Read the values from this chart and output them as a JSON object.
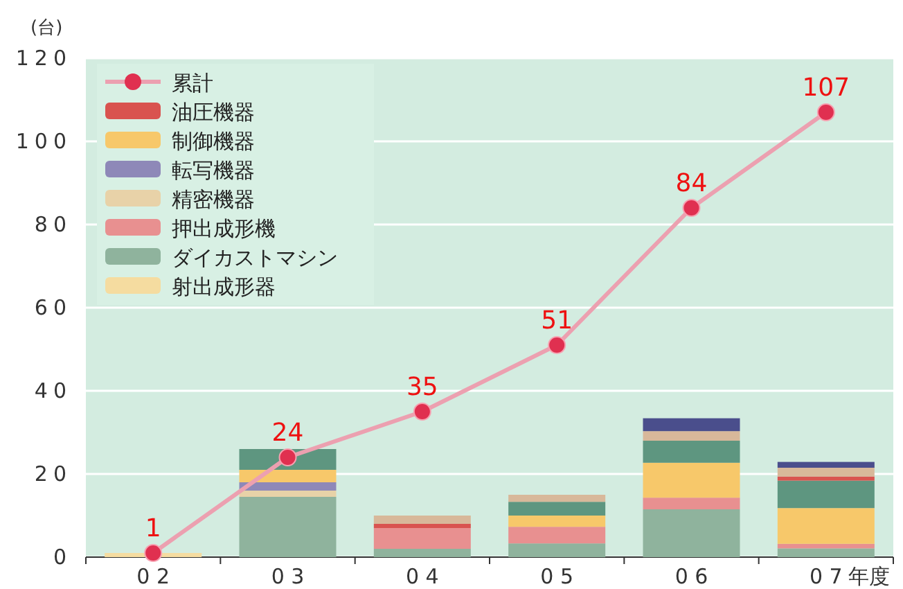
{
  "chart_data": {
    "type": "bar",
    "stacked": true,
    "ylabel": "(台)",
    "xlabel": "年度",
    "categories": [
      "0 2",
      "0 3",
      "0 4",
      "0 5",
      "0 6",
      "0 7"
    ],
    "ylim": [
      0,
      120
    ],
    "yticks": [
      0,
      20,
      40,
      60,
      80,
      100,
      120
    ],
    "grid": "y",
    "legend": "top left",
    "series": [
      {
        "name": "射出成形器",
        "color": "#f5dca0",
        "values": [
          1,
          0,
          0,
          0,
          0,
          0
        ]
      },
      {
        "name": "ダイカストマシン",
        "color": "#8fb39d",
        "values": [
          0,
          14.5,
          2,
          3.3,
          11.5,
          2.1
        ]
      },
      {
        "name": "押出成形機",
        "color": "#e89090",
        "values": [
          0,
          0,
          5,
          4,
          2.8,
          1.1
        ]
      },
      {
        "name": "精密機器",
        "color": "#e8d2a8",
        "values": [
          0,
          1.5,
          0,
          0,
          0,
          0
        ]
      },
      {
        "name": "転写機器",
        "color": "#8e88b8",
        "values": [
          0,
          2,
          0,
          0,
          0,
          0
        ]
      },
      {
        "name": "制御機器",
        "color": "#f7c86a",
        "values": [
          0,
          3,
          0,
          2.7,
          8.4,
          8.6
        ]
      },
      {
        "color": "#5e9680",
        "values": [
          0,
          5,
          0,
          3.3,
          5.3,
          6.6
        ]
      },
      {
        "name": "油圧機器",
        "color": "#d9534f",
        "values": [
          0,
          0,
          1,
          0,
          0,
          1
        ]
      },
      {
        "color": "#d8b89a",
        "values": [
          0,
          0,
          2,
          1.7,
          2.3,
          2.1
        ]
      },
      {
        "color": "#4a4e8c",
        "values": [
          0,
          0,
          0,
          0,
          3.1,
          1.4
        ]
      },
      {
        "name": "累計",
        "type": "line",
        "color": "#eca0b0",
        "marker": "circle",
        "values": [
          1,
          24,
          35,
          51,
          84,
          107
        ],
        "value_labels": [
          "1",
          "24",
          "35",
          "51",
          "84",
          "107"
        ]
      }
    ]
  }
}
